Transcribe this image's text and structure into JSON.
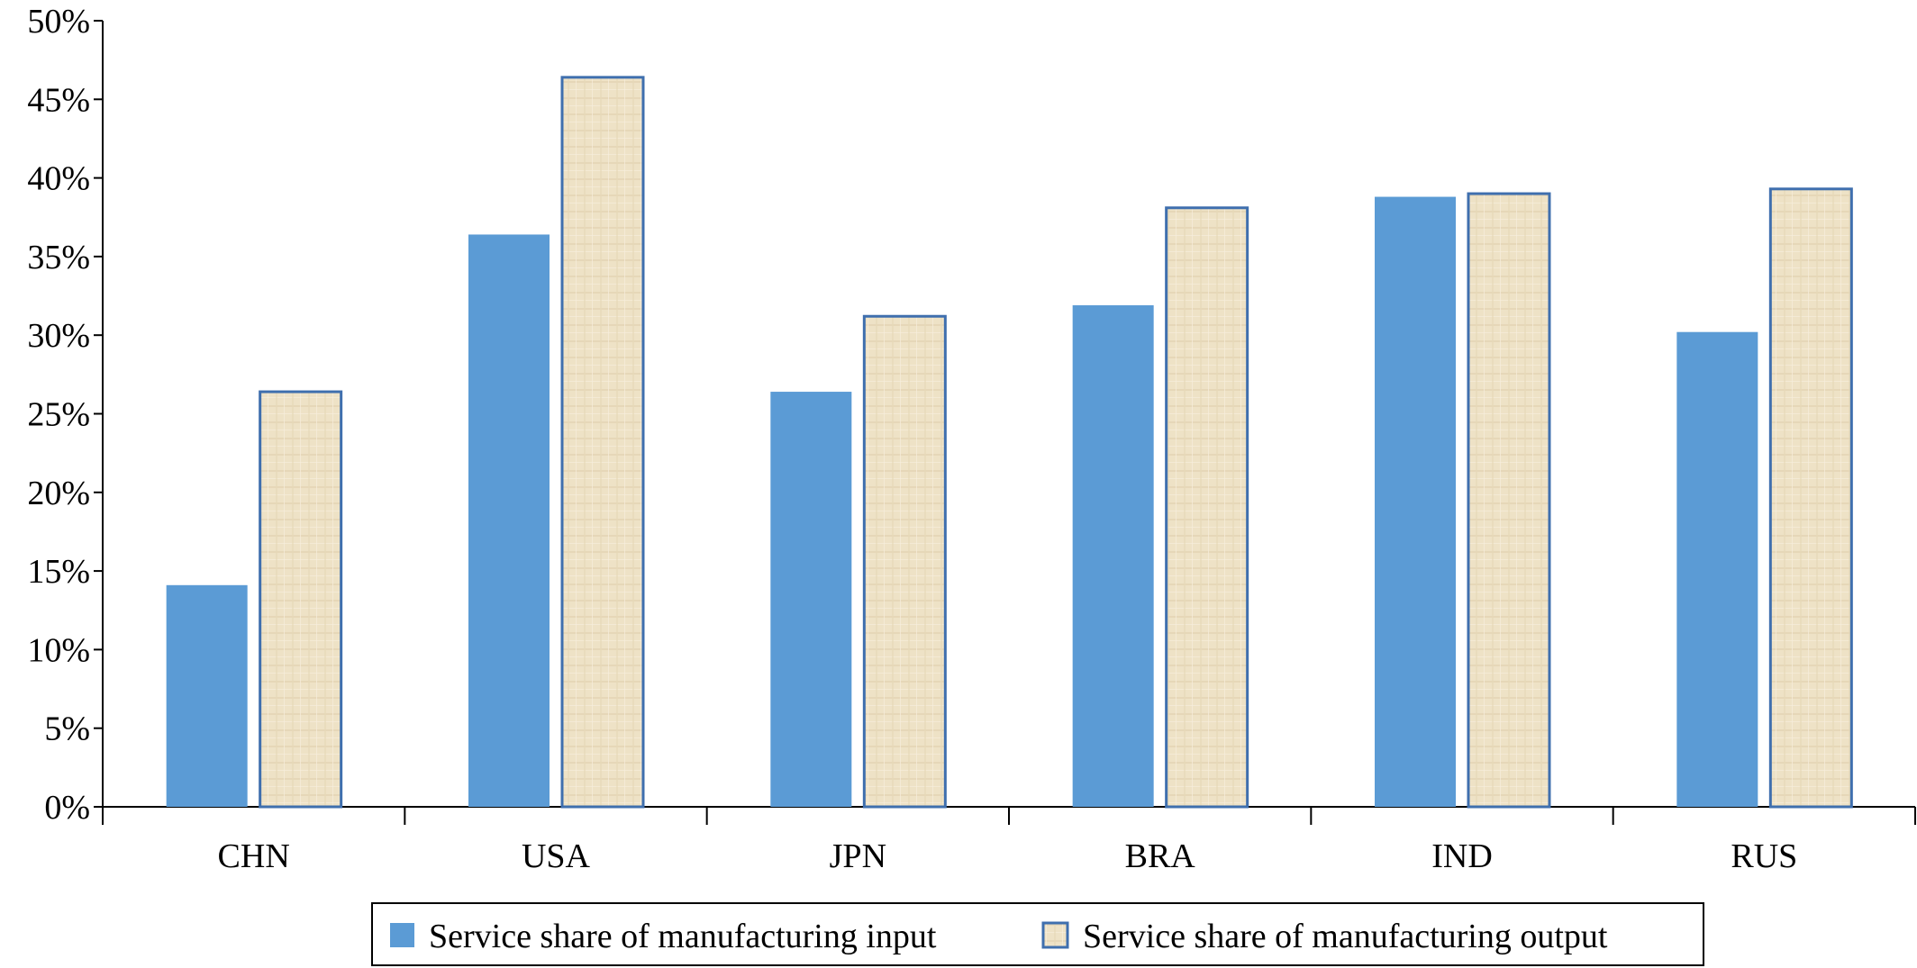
{
  "chart_data": {
    "type": "bar",
    "categories": [
      "CHN",
      "USA",
      "JPN",
      "BRA",
      "IND",
      "RUS"
    ],
    "series": [
      {
        "name": "Service share of manufacturing input",
        "values": [
          14.1,
          36.4,
          26.4,
          31.9,
          38.8,
          30.2
        ],
        "color": "#5b9bd5"
      },
      {
        "name": "Service share of manufacturing output",
        "values": [
          26.4,
          46.4,
          31.2,
          38.1,
          39.0,
          39.3
        ],
        "color": "#eee2c6",
        "border": "#3f6fae"
      }
    ],
    "yticks": [
      "0%",
      "5%",
      "10%",
      "15%",
      "20%",
      "25%",
      "30%",
      "35%",
      "40%",
      "45%",
      "50%"
    ],
    "ylim": [
      0,
      50
    ],
    "grid": false,
    "legend_position": "bottom"
  }
}
